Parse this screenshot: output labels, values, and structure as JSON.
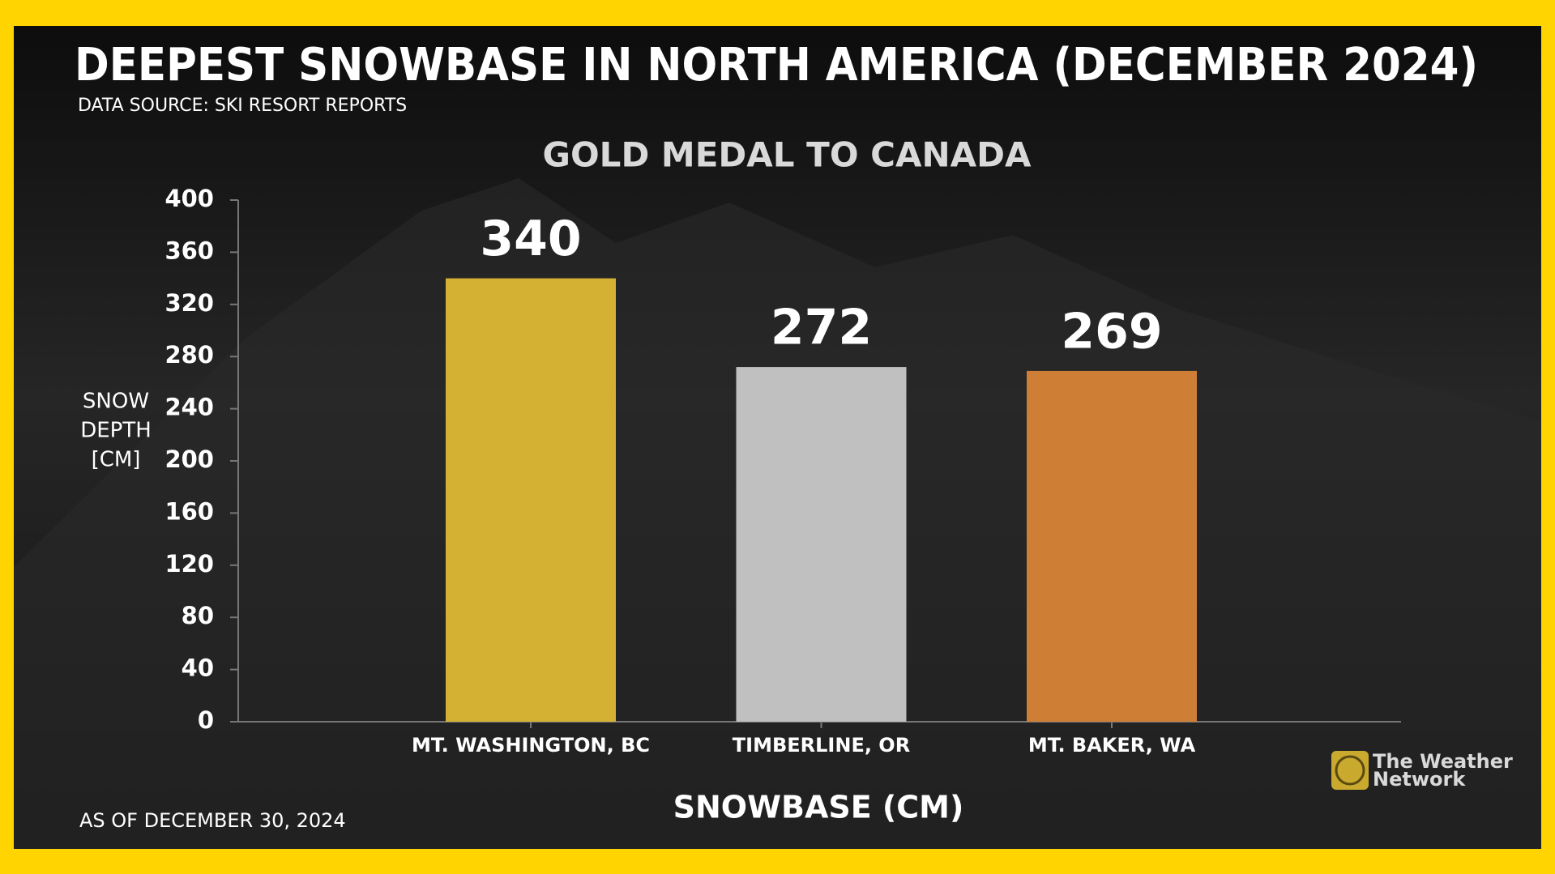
{
  "chart_data": {
    "type": "bar",
    "title": "DEEPEST SNOWBASE IN NORTH AMERICA (DECEMBER 2024)",
    "subtitle": "DATA SOURCE: SKI RESORT REPORTS",
    "heading": "GOLD MEDAL TO CANADA",
    "ylabel": [
      "SNOW",
      "DEPTH",
      "[CM]"
    ],
    "xlabel": "SNOWBASE (CM)",
    "note": "AS OF DECEMBER 30, 2024",
    "categories": [
      "MT. WASHINGTON, BC",
      "TIMBERLINE, OR",
      "MT. BAKER, WA"
    ],
    "values": [
      340,
      272,
      269
    ],
    "colors": [
      "#d4b133",
      "#c0c0c0",
      "#cf7f35"
    ],
    "ylim": [
      0,
      400
    ],
    "yticks": [
      0,
      40,
      80,
      120,
      160,
      200,
      240,
      280,
      320,
      360,
      400
    ]
  },
  "branding": [
    "The Weather",
    "Network"
  ]
}
